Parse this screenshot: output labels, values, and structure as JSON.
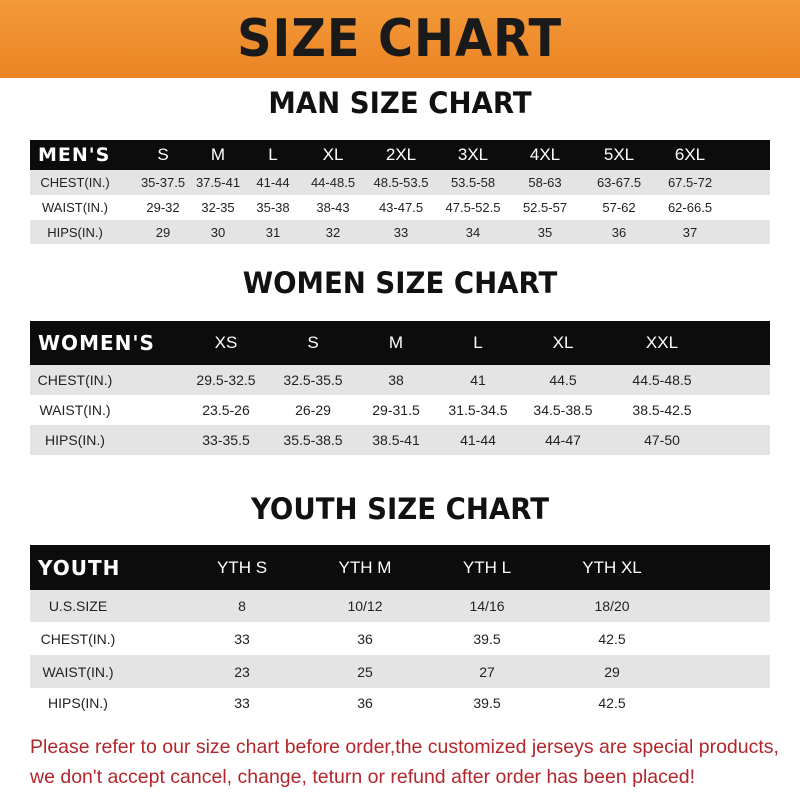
{
  "banner_title": "SIZE CHART",
  "men": {
    "title": "MAN SIZE CHART",
    "header": [
      "MEN'S",
      "S",
      "M",
      "L",
      "XL",
      "2XL",
      "3XL",
      "4XL",
      "5XL",
      "6XL"
    ],
    "rows": [
      [
        "CHEST(IN.)",
        "35-37.5",
        "37.5-41",
        "41-44",
        "44-48.5",
        "48.5-53.5",
        "53.5-58",
        "58-63",
        "63-67.5",
        "67.5-72"
      ],
      [
        "WAIST(IN.)",
        "29-32",
        "32-35",
        "35-38",
        "38-43",
        "43-47.5",
        "47.5-52.5",
        "52.5-57",
        "57-62",
        "62-66.5"
      ],
      [
        "HIPS(IN.)",
        "29",
        "30",
        "31",
        "32",
        "33",
        "34",
        "35",
        "36",
        "37"
      ]
    ]
  },
  "women": {
    "title": "WOMEN SIZE CHART",
    "header": [
      "WOMEN'S",
      "XS",
      "S",
      "M",
      "L",
      "XL",
      "XXL"
    ],
    "rows": [
      [
        "CHEST(IN.)",
        "29.5-32.5",
        "32.5-35.5",
        "38",
        "41",
        "44.5",
        "44.5-48.5"
      ],
      [
        "WAIST(IN.)",
        "23.5-26",
        "26-29",
        "29-31.5",
        "31.5-34.5",
        "34.5-38.5",
        "38.5-42.5"
      ],
      [
        "HIPS(IN.)",
        "33-35.5",
        "35.5-38.5",
        "38.5-41",
        "41-44",
        "44-47",
        "47-50"
      ]
    ]
  },
  "youth": {
    "title": "YOUTH SIZE CHART",
    "header": [
      "YOUTH",
      "YTH S",
      "YTH M",
      "YTH L",
      "YTH XL"
    ],
    "rows": [
      [
        "U.S.SIZE",
        "8",
        "10/12",
        "14/16",
        "18/20"
      ],
      [
        "CHEST(IN.)",
        "33",
        "36",
        "39.5",
        "42.5"
      ],
      [
        "WAIST(IN.)",
        "23",
        "25",
        "27",
        "29"
      ],
      [
        "HIPS(IN.)",
        "33",
        "36",
        "39.5",
        "42.5"
      ]
    ]
  },
  "notice": [
    "Please refer to our size chart before order,the customized jerseys are special products,",
    "we don't accept cancel, change, teturn or refund after order has been placed!"
  ],
  "colors": {
    "banner": "#ec8424",
    "header_row": "#0c0c0c",
    "stripe": "#e4e4e4",
    "notice": "#b3262b"
  }
}
